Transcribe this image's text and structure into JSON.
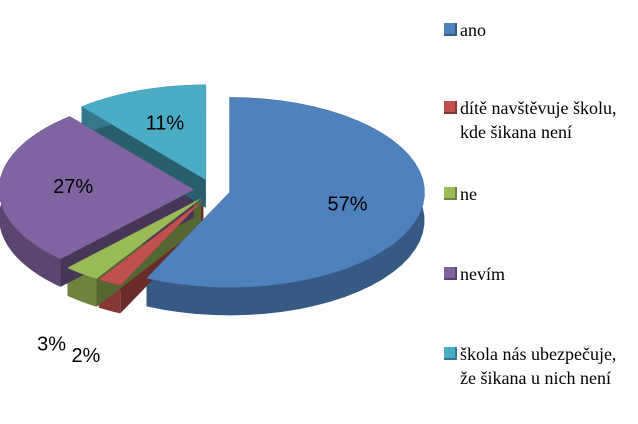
{
  "chart_data": {
    "type": "pie",
    "categories": [
      "ano",
      "dítě navštěvuje školu, kde šikana není",
      "ne",
      "nevím",
      "škola nás ubezpečuje, že šikana u nich není"
    ],
    "values": [
      57,
      2,
      3,
      27,
      11
    ],
    "value_labels": [
      "57%",
      "2%",
      "3%",
      "27%",
      "11%"
    ],
    "colors": [
      "#4f81bd",
      "#c0504d",
      "#9bbb59",
      "#8064a2",
      "#4bacc6"
    ],
    "legend": "right"
  }
}
